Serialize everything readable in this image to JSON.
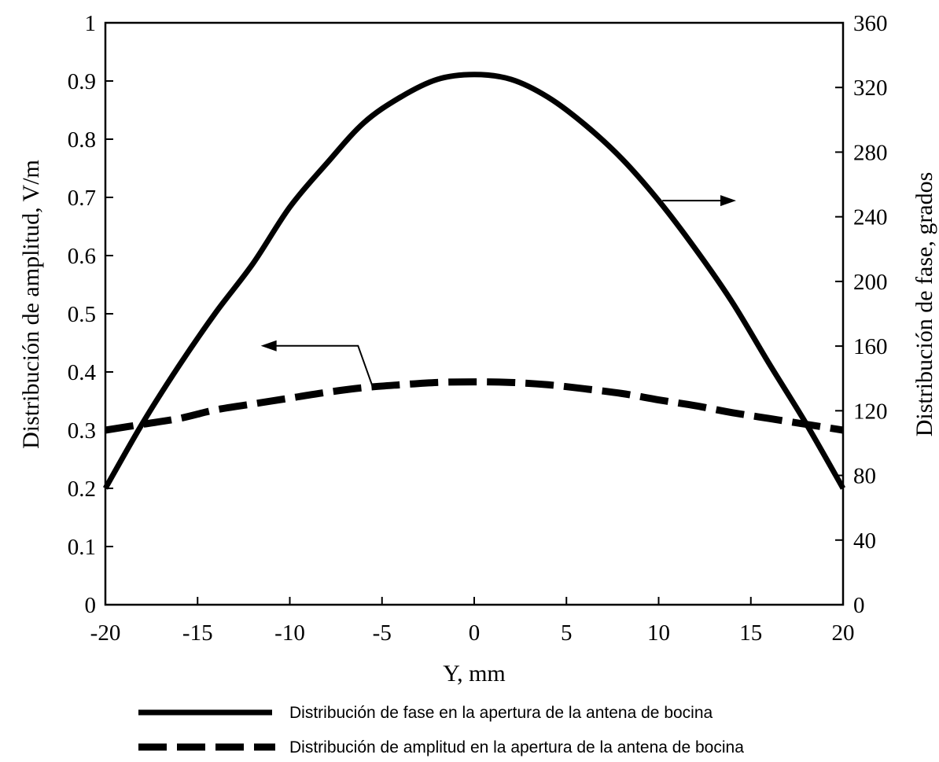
{
  "chart_data": {
    "type": "line",
    "xlabel": "Y, mm",
    "ylabel_left": "Distribución de amplitud, V/m",
    "ylabel_right": "Distribución de fase, grados",
    "xlim": [
      -20,
      20
    ],
    "ylim_left": [
      0,
      1
    ],
    "ylim_right": [
      0,
      360
    ],
    "x_ticks": [
      "-20",
      "-15",
      "-10",
      "-5",
      "0",
      "5",
      "10",
      "15",
      "20"
    ],
    "y_left_ticks": [
      "0",
      "0.1",
      "0.2",
      "0.3",
      "0.4",
      "0.5",
      "0.6",
      "0.7",
      "0.8",
      "0.9",
      "1"
    ],
    "y_right_ticks": [
      "0",
      "40",
      "80",
      "120",
      "160",
      "200",
      "240",
      "280",
      "320",
      "360"
    ],
    "grid": false,
    "legend_position": "bottom",
    "series": [
      {
        "name": "Distribución de fase en la apertura de la antena de bocina",
        "axis": "right",
        "style": "solid",
        "color": "#000000",
        "x": [
          -20,
          -18,
          -16,
          -14,
          -12,
          -10,
          -8,
          -6,
          -4,
          -2,
          0,
          2,
          4,
          6,
          8,
          10,
          12,
          14,
          16,
          18,
          20
        ],
        "y": [
          72,
          112,
          148,
          181,
          211,
          246,
          273,
          298,
          314,
          325,
          328,
          325,
          314,
          297,
          276,
          250,
          220,
          187,
          149,
          112,
          72
        ]
      },
      {
        "name": "Distribución de amplitud en la apertura de la antena de bocina",
        "axis": "left",
        "style": "dashed",
        "color": "#000000",
        "x": [
          -20,
          -18,
          -16,
          -14,
          -12,
          -10,
          -8,
          -6,
          -4,
          -2,
          0,
          2,
          4,
          6,
          8,
          10,
          12,
          14,
          16,
          18,
          20
        ],
        "y": [
          0.3,
          0.31,
          0.32,
          0.335,
          0.345,
          0.355,
          0.365,
          0.373,
          0.378,
          0.382,
          0.383,
          0.382,
          0.378,
          0.371,
          0.363,
          0.352,
          0.342,
          0.33,
          0.32,
          0.31,
          0.3
        ]
      }
    ]
  }
}
